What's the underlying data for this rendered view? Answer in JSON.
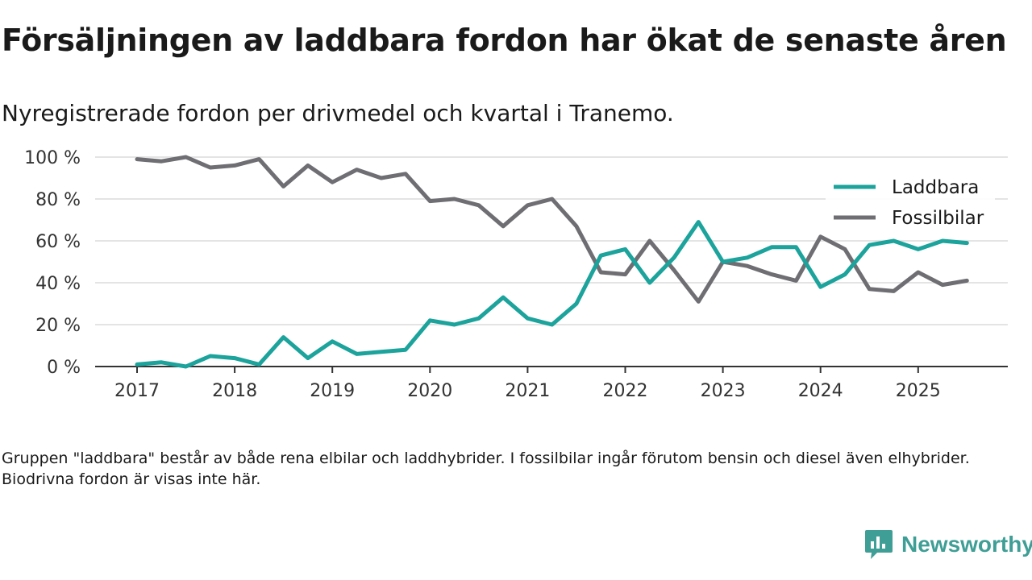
{
  "title": "Försäljningen av laddbara fordon har ökat de senaste åren",
  "subtitle": "Nyregistrerade fordon per drivmedel och kvartal i Tranemo.",
  "footnote": "Gruppen \"laddbara\" består av både rena elbilar och laddhybrider. I fossilbilar ingår förutom bensin och diesel även elhybrider. Biodrivna fordon är visas inte här.",
  "brand": {
    "name": "Newsworthy",
    "color": "#3f9e95",
    "icon": "newsworthy-logo-icon"
  },
  "chart_data": {
    "type": "line",
    "title": "Försäljningen av laddbara fordon har ökat de senaste åren",
    "subtitle": "Nyregistrerade fordon per drivmedel och kvartal i Tranemo.",
    "xlabel": "",
    "ylabel": "",
    "x_unit": "year (quarterly points)",
    "xlim": [
      2016.6,
      2025.9
    ],
    "ylim": [
      0,
      100
    ],
    "x_ticks": [
      2017,
      2018,
      2019,
      2020,
      2021,
      2022,
      2023,
      2024,
      2025
    ],
    "x_tick_labels": [
      "2017",
      "2018",
      "2019",
      "2020",
      "2021",
      "2022",
      "2023",
      "2024",
      "2025"
    ],
    "y_ticks": [
      0,
      20,
      40,
      60,
      80,
      100
    ],
    "y_tick_labels": [
      "0 %",
      "20 %",
      "40 %",
      "60 %",
      "80 %",
      "100 %"
    ],
    "grid": "horizontal",
    "legend_position": "top-right",
    "x": [
      2017.0,
      2017.25,
      2017.5,
      2017.75,
      2018.0,
      2018.25,
      2018.5,
      2018.75,
      2019.0,
      2019.25,
      2019.5,
      2019.75,
      2020.0,
      2020.25,
      2020.5,
      2020.75,
      2021.0,
      2021.25,
      2021.5,
      2021.75,
      2022.0,
      2022.25,
      2022.5,
      2022.75,
      2023.0,
      2023.25,
      2023.5,
      2023.75,
      2024.0,
      2024.25,
      2024.5,
      2024.75,
      2025.0,
      2025.25,
      2025.5
    ],
    "series": [
      {
        "name": "Laddbara",
        "color": "#1ba39c",
        "values": [
          1,
          2,
          0,
          5,
          4,
          1,
          14,
          4,
          12,
          6,
          7,
          8,
          22,
          20,
          23,
          33,
          23,
          20,
          30,
          53,
          56,
          40,
          52,
          69,
          50,
          52,
          57,
          57,
          38,
          44,
          58,
          60,
          56,
          60,
          59
        ]
      },
      {
        "name": "Fossilbilar",
        "color": "#6e6e73",
        "values": [
          99,
          98,
          100,
          95,
          96,
          99,
          86,
          96,
          88,
          94,
          90,
          92,
          79,
          80,
          77,
          67,
          77,
          80,
          67,
          45,
          44,
          60,
          46,
          31,
          50,
          48,
          44,
          41,
          62,
          56,
          37,
          36,
          45,
          39,
          41
        ]
      }
    ]
  }
}
